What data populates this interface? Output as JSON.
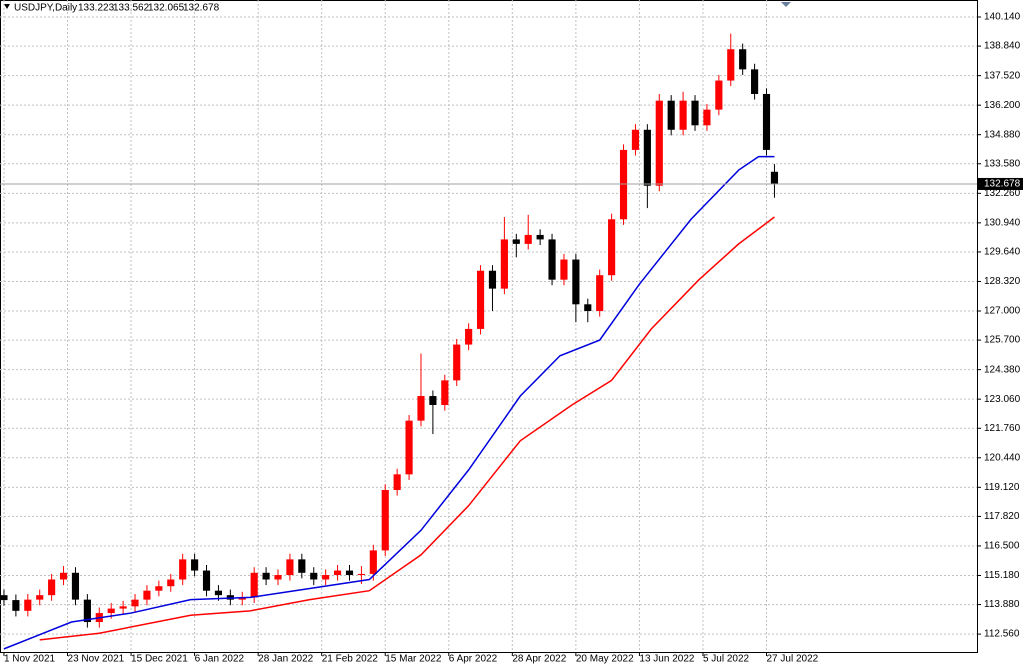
{
  "chart_data": {
    "type": "candlestick",
    "symbol": "USDJPY,Daily",
    "up_color": "#ff0000",
    "down_color": "#000000",
    "grid": true,
    "xlim": [
      -1,
      245
    ],
    "ylim": [
      111.76,
      140.9
    ],
    "xticks": [
      {
        "value": 0,
        "label": "1 Nov 2021"
      },
      {
        "value": 16,
        "label": "23 Nov 2021"
      },
      {
        "value": 32,
        "label": "15 Dec 2021"
      },
      {
        "value": 48,
        "label": "6 Jan 2022"
      },
      {
        "value": 64,
        "label": "28 Jan 2022"
      },
      {
        "value": 80,
        "label": "21 Feb 2022"
      },
      {
        "value": 96,
        "label": "15 Mar 2022"
      },
      {
        "value": 112,
        "label": "6 Apr 2022"
      },
      {
        "value": 128,
        "label": "28 Apr 2022"
      },
      {
        "value": 144,
        "label": "20 May 2022"
      },
      {
        "value": 160,
        "label": "13 Jun 2022"
      },
      {
        "value": 176,
        "label": "5 Jul 2022"
      },
      {
        "value": 192,
        "label": "27 Jul 2022"
      }
    ],
    "yticks": [
      {
        "value": 112.56,
        "label": "112.560"
      },
      {
        "value": 113.88,
        "label": "113.880"
      },
      {
        "value": 115.18,
        "label": "115.180"
      },
      {
        "value": 116.5,
        "label": "116.500"
      },
      {
        "value": 117.82,
        "label": "117.820"
      },
      {
        "value": 119.12,
        "label": "119.120"
      },
      {
        "value": 120.44,
        "label": "120.440"
      },
      {
        "value": 121.76,
        "label": "121.760"
      },
      {
        "value": 123.06,
        "label": "123.060"
      },
      {
        "value": 124.38,
        "label": "124.380"
      },
      {
        "value": 125.7,
        "label": "125.700"
      },
      {
        "value": 127,
        "label": "127.000"
      },
      {
        "value": 128.32,
        "label": "128.320"
      },
      {
        "value": 129.64,
        "label": "129.640"
      },
      {
        "value": 130.94,
        "label": "130.940"
      },
      {
        "value": 132.26,
        "label": "132.260"
      },
      {
        "value": 133.58,
        "label": "133.580"
      },
      {
        "value": 134.88,
        "label": "134.880"
      },
      {
        "value": 136.2,
        "label": "136.200"
      },
      {
        "value": 137.52,
        "label": "137.520"
      },
      {
        "value": 138.84,
        "label": "138.840"
      },
      {
        "value": 140.14,
        "label": "140.140"
      }
    ],
    "x": [
      0,
      3,
      6,
      9,
      12,
      15,
      18,
      21,
      24,
      27,
      30,
      33,
      36,
      39,
      42,
      45,
      48,
      51,
      54,
      57,
      60,
      63,
      66,
      69,
      72,
      75,
      78,
      81,
      84,
      87,
      90,
      93,
      96,
      99,
      102,
      105,
      108,
      111,
      114,
      117,
      120,
      123,
      126,
      129,
      132,
      135,
      138,
      141,
      144,
      147,
      150,
      153,
      156,
      159,
      162,
      165,
      168,
      171,
      174,
      177,
      180,
      183,
      186,
      189,
      192,
      194
    ],
    "candles": [
      [
        114.3,
        114.55,
        113.83,
        114.08
      ],
      [
        114.08,
        114.33,
        113.35,
        113.6
      ],
      [
        113.6,
        114.35,
        113.35,
        114.1
      ],
      [
        114.1,
        114.55,
        113.85,
        114.3
      ],
      [
        114.3,
        115.25,
        114.05,
        115.0
      ],
      [
        115.0,
        115.6,
        114.75,
        115.3
      ],
      [
        115.3,
        115.55,
        113.85,
        114.1
      ],
      [
        114.1,
        114.35,
        112.85,
        113.1
      ],
      [
        113.1,
        113.75,
        112.85,
        113.5
      ],
      [
        113.5,
        113.95,
        113.25,
        113.7
      ],
      [
        113.7,
        114.05,
        113.45,
        113.8
      ],
      [
        113.8,
        114.35,
        113.55,
        114.1
      ],
      [
        114.1,
        114.75,
        113.85,
        114.5
      ],
      [
        114.5,
        114.95,
        114.25,
        114.7
      ],
      [
        114.7,
        115.25,
        114.45,
        115.0
      ],
      [
        115.0,
        116.15,
        114.75,
        115.9
      ],
      [
        115.9,
        116.15,
        115.15,
        115.4
      ],
      [
        115.4,
        115.65,
        114.25,
        114.5
      ],
      [
        114.5,
        114.75,
        114.05,
        114.3
      ],
      [
        114.3,
        114.55,
        113.85,
        114.1
      ],
      [
        114.1,
        114.45,
        113.85,
        114.2
      ],
      [
        114.2,
        115.55,
        113.95,
        115.3
      ],
      [
        115.3,
        115.55,
        114.75,
        115.0
      ],
      [
        115.0,
        115.45,
        114.75,
        115.2
      ],
      [
        115.2,
        116.15,
        114.95,
        115.9
      ],
      [
        115.9,
        116.15,
        115.05,
        115.3
      ],
      [
        115.3,
        115.55,
        114.75,
        115.0
      ],
      [
        115.0,
        115.45,
        114.75,
        115.2
      ],
      [
        115.2,
        115.65,
        114.95,
        115.4
      ],
      [
        115.4,
        115.65,
        114.95,
        115.2
      ],
      [
        115.2,
        115.6,
        114.8,
        115.25
      ],
      [
        115.25,
        116.55,
        114.95,
        116.3
      ],
      [
        116.3,
        119.25,
        116.05,
        119.0
      ],
      [
        119.0,
        119.95,
        118.75,
        119.7
      ],
      [
        119.7,
        122.35,
        119.45,
        122.1
      ],
      [
        122.1,
        125.1,
        121.85,
        123.2
      ],
      [
        123.2,
        123.45,
        121.5,
        122.8
      ],
      [
        122.8,
        124.15,
        122.55,
        123.9
      ],
      [
        123.9,
        125.75,
        123.65,
        125.5
      ],
      [
        125.5,
        126.45,
        125.25,
        126.2
      ],
      [
        126.2,
        129.05,
        125.95,
        128.8
      ],
      [
        128.8,
        129.05,
        127.0,
        128.0
      ],
      [
        128.0,
        131.2,
        127.75,
        130.2
      ],
      [
        130.2,
        130.45,
        129.4,
        130.0
      ],
      [
        130.0,
        131.3,
        129.75,
        130.4
      ],
      [
        130.4,
        130.65,
        129.95,
        130.2
      ],
      [
        130.2,
        130.45,
        128.15,
        128.4
      ],
      [
        128.4,
        129.55,
        128.15,
        129.3
      ],
      [
        129.3,
        129.55,
        126.5,
        127.3
      ],
      [
        127.3,
        127.55,
        126.5,
        127.0
      ],
      [
        127.0,
        128.85,
        126.75,
        128.6
      ],
      [
        128.6,
        131.35,
        128.35,
        131.1
      ],
      [
        131.1,
        134.45,
        130.85,
        134.2
      ],
      [
        134.2,
        135.35,
        133.95,
        135.1
      ],
      [
        135.1,
        135.35,
        131.6,
        132.6
      ],
      [
        132.6,
        136.7,
        132.35,
        136.4
      ],
      [
        136.4,
        136.65,
        134.85,
        135.1
      ],
      [
        135.1,
        136.8,
        134.85,
        136.4
      ],
      [
        136.4,
        136.65,
        135.05,
        135.3
      ],
      [
        135.3,
        136.25,
        135.05,
        136.0
      ],
      [
        136.0,
        137.55,
        135.75,
        137.3
      ],
      [
        137.3,
        139.4,
        137.05,
        138.7
      ],
      [
        138.7,
        138.95,
        137.55,
        137.8
      ],
      [
        137.8,
        138.05,
        136.45,
        136.7
      ],
      [
        136.7,
        136.95,
        133.95,
        134.2
      ],
      [
        133.223,
        133.562,
        132.065,
        132.678
      ]
    ],
    "moving_averages": [
      {
        "color": "#0000dd",
        "x": [
          0,
          17,
          32,
          47,
          62,
          77,
          92,
          105,
          117,
          130,
          140,
          150,
          160,
          173,
          185,
          190,
          194
        ],
        "values": [
          111.9,
          113.1,
          113.5,
          114.1,
          114.2,
          114.6,
          115.0,
          117.2,
          119.9,
          123.2,
          125.0,
          125.7,
          128.2,
          131.1,
          133.3,
          133.9,
          133.9
        ]
      },
      {
        "color": "#ff0000",
        "x": [
          9,
          24,
          47,
          62,
          77,
          92,
          105,
          117,
          130,
          143,
          153,
          163,
          175,
          185,
          194
        ],
        "values": [
          112.3,
          112.6,
          113.4,
          113.6,
          114.1,
          114.5,
          116.1,
          118.3,
          121.2,
          122.8,
          123.9,
          126.2,
          128.4,
          130.0,
          131.2
        ]
      }
    ]
  }
}
